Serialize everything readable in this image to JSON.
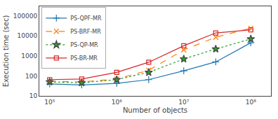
{
  "chart_data": {
    "type": "line",
    "xlabel": "Number of objects",
    "ylabel": "Execution time (sec)",
    "x": [
      100000,
      300000,
      1000000,
      3000000,
      10000000,
      30000000,
      100000000
    ],
    "series": [
      {
        "name": "PS-QPF-MR",
        "values": [
          40,
          35,
          42,
          65,
          180,
          500,
          4500
        ],
        "line_style": "solid",
        "marker": "plus"
      },
      {
        "name": "PS-BRF-MR",
        "values": [
          55,
          50,
          70,
          190,
          2000,
          8500,
          24000
        ],
        "line_style": "dashed",
        "marker": "x"
      },
      {
        "name": "PS-QP-MR",
        "values": [
          50,
          45,
          65,
          150,
          700,
          2200,
          7000
        ],
        "line_style": "dotted",
        "marker": "star"
      },
      {
        "name": "PS-BR-MR",
        "values": [
          65,
          70,
          150,
          480,
          3200,
          14000,
          20000
        ],
        "line_style": "solid",
        "marker": "square"
      }
    ],
    "log": true,
    "xlim": [
      70000,
      200000000
    ],
    "ylim": [
      10,
      300000
    ],
    "xticks": [
      {
        "value": 100000,
        "label": "10⁵"
      },
      {
        "value": 1000000,
        "label": "10⁶"
      },
      {
        "value": 10000000,
        "label": "10⁷"
      },
      {
        "value": 100000000,
        "label": "10⁸"
      }
    ],
    "yticks": [
      10,
      100,
      1000,
      10000,
      100000
    ],
    "grid": false,
    "legend": "upper left"
  }
}
